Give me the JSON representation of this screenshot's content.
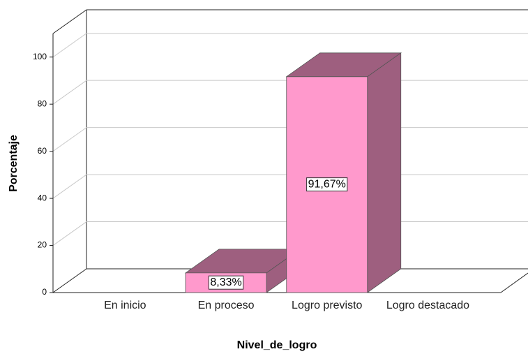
{
  "chart_data": {
    "type": "bar3d",
    "xlabel": "Nivel_de_logro",
    "ylabel": "Porcentaje",
    "categories": [
      "En inicio",
      "En proceso",
      "Logro previsto",
      "Logro destacado"
    ],
    "values": [
      null,
      8.33,
      91.67,
      null
    ],
    "value_labels": [
      null,
      "8,33%",
      "91,67%",
      null
    ],
    "color": "#ff99cc",
    "side_color": "#9e5f7f",
    "ylim": [
      0,
      110
    ],
    "yticks": [
      0,
      20,
      40,
      60,
      80,
      100
    ],
    "grid": true
  }
}
